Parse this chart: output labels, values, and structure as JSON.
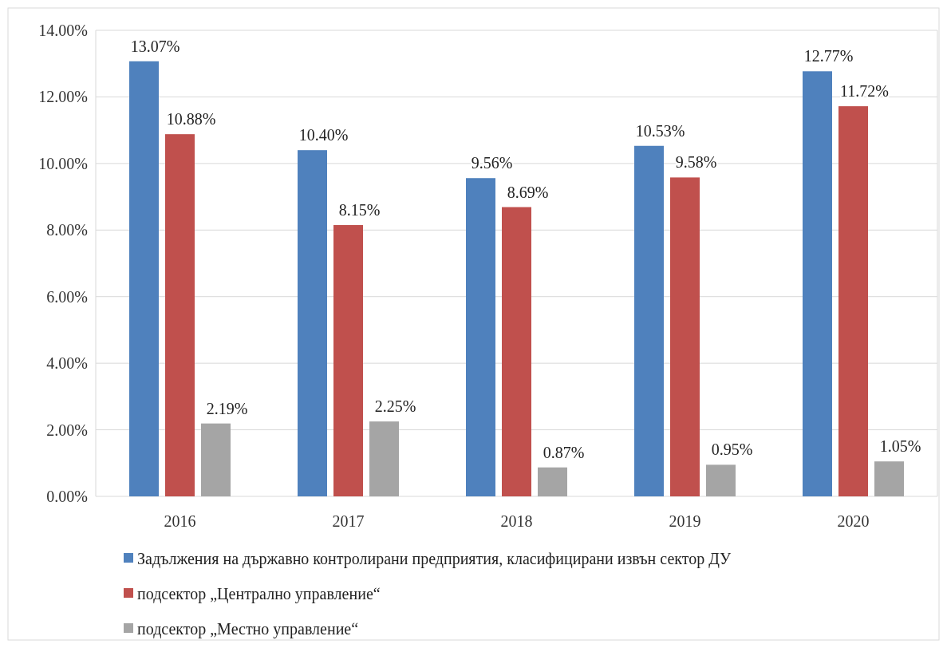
{
  "chart_data": {
    "type": "bar",
    "categories": [
      "2016",
      "2017",
      "2018",
      "2019",
      "2020"
    ],
    "series": [
      {
        "name": "Задължения на държавно контролирани предприятия, класифицирани извън сектор ДУ",
        "color": "#4f81bd",
        "values": [
          13.07,
          10.4,
          9.56,
          10.53,
          12.77
        ],
        "value_labels": [
          "13.07%",
          "10.40%",
          "9.56%",
          "10.53%",
          "12.77%"
        ]
      },
      {
        "name": "подсектор „Централно управление“",
        "color": "#c0504d",
        "values": [
          10.88,
          8.15,
          8.69,
          9.58,
          11.72
        ],
        "value_labels": [
          "10.88%",
          "8.15%",
          "8.69%",
          "9.58%",
          "11.72%"
        ]
      },
      {
        "name": "подсектор „Местно управление“",
        "color": "#a5a5a5",
        "values": [
          2.19,
          2.25,
          0.87,
          0.95,
          1.05
        ],
        "value_labels": [
          "2.19%",
          "2.25%",
          "0.87%",
          "0.95%",
          "1.05%"
        ]
      }
    ],
    "ylim": [
      0,
      14
    ],
    "yticks": [
      {
        "value": 0,
        "label": "0.00%"
      },
      {
        "value": 2,
        "label": "2.00%"
      },
      {
        "value": 4,
        "label": "4.00%"
      },
      {
        "value": 6,
        "label": "6.00%"
      },
      {
        "value": 8,
        "label": "8.00%"
      },
      {
        "value": 10,
        "label": "10.00%"
      },
      {
        "value": 12,
        "label": "12.00%"
      },
      {
        "value": 14,
        "label": "14.00%"
      }
    ],
    "grid": "y",
    "legend": "bottom"
  }
}
